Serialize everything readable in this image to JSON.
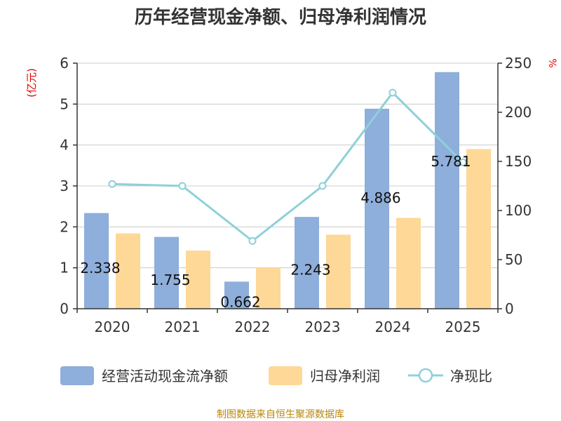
{
  "colors": {
    "bar1": "#8eaedb",
    "bar2": "#fdd897",
    "line": "#8dd1d8",
    "grid": "#cccccc",
    "axis": "#333333",
    "unit": "#e60000",
    "source": "#b8860b"
  },
  "chart_data": {
    "type": "bar",
    "title": "历年经营现金净额、归母净利润情况",
    "left_unit": "(亿元)",
    "right_unit": "%",
    "categories": [
      "2020",
      "2021",
      "2022",
      "2023",
      "2024",
      "2025"
    ],
    "ylim_left": [
      0,
      6
    ],
    "ylim_right": [
      0,
      250
    ],
    "left_ticks": [
      "0",
      "1",
      "2",
      "3",
      "4",
      "5",
      "6"
    ],
    "right_ticks": [
      "0",
      "50",
      "100",
      "150",
      "200",
      "250"
    ],
    "grid": true,
    "legend_position": "bottom",
    "series": [
      {
        "name": "经营活动现金流净额",
        "kind": "bar",
        "axis": "left",
        "values": [
          2.338,
          1.755,
          0.662,
          2.243,
          4.886,
          5.781
        ],
        "labels": [
          "2.338",
          "1.755",
          "0.662",
          "2.243",
          "4.886",
          "5.781"
        ]
      },
      {
        "name": "归母净利润",
        "kind": "bar",
        "axis": "left",
        "values": [
          1.84,
          1.42,
          1.0,
          1.81,
          2.22,
          3.9
        ]
      },
      {
        "name": "净现比",
        "kind": "line",
        "axis": "right",
        "values": [
          127,
          125,
          69,
          125,
          220,
          149
        ]
      }
    ]
  },
  "source": "制图数据来自恒生聚源数据库"
}
